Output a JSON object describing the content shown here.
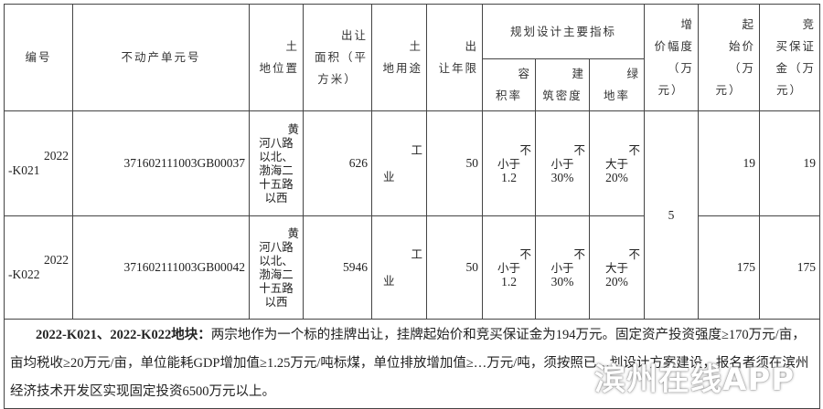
{
  "headers": {
    "id": [
      "编号"
    ],
    "unit": [
      "不动产单元号"
    ],
    "location": [
      "土",
      "地位置"
    ],
    "area": [
      "出让",
      "面积（平",
      "方米）"
    ],
    "use": [
      "土",
      "地用途"
    ],
    "term": [
      "出",
      "让年限"
    ],
    "planning": "规划设计主要指标",
    "far": [
      "容",
      "积率"
    ],
    "density": [
      "建",
      "筑密度"
    ],
    "green": [
      "绿",
      "地率"
    ],
    "increment": [
      "增",
      "价幅度",
      "（万",
      "元）"
    ],
    "start": [
      "起",
      "始价",
      "（万",
      "元）"
    ],
    "deposit": [
      "竞",
      "买保证",
      "金（万",
      "元）"
    ]
  },
  "rows": [
    {
      "id": [
        "2022",
        "-K021"
      ],
      "unit": "371602111003GB00037",
      "location": [
        "黄",
        "河八路",
        "以北、",
        "渤海二",
        "十五路",
        "以西"
      ],
      "area": "626",
      "use": [
        "工",
        "业"
      ],
      "term": "50",
      "far": [
        "不",
        "小于",
        "1.2"
      ],
      "density": [
        "不",
        "小于",
        "30%"
      ],
      "green": [
        "不",
        "大于",
        "20%"
      ],
      "start": "19",
      "deposit": "19"
    },
    {
      "id": [
        "2022",
        "-K022"
      ],
      "unit": "371602111003GB00042",
      "location": [
        "黄",
        "河八路",
        "以北、",
        "渤海二",
        "十五路",
        "以西"
      ],
      "area": "5946",
      "use": [
        "工",
        "业"
      ],
      "term": "50",
      "far": [
        "不",
        "小于",
        "1.2"
      ],
      "density": [
        "不",
        "小于",
        "30%"
      ],
      "green": [
        "不",
        "大于",
        "20%"
      ],
      "start": "175",
      "deposit": "175"
    }
  ],
  "increment_value": "5",
  "note": {
    "lead": "2022-K021、2022-K022地块：",
    "text": "两宗地作为一个标的挂牌出让，挂牌起始价和竞买保证金为194万元。固定资产投资强度≥170万元/亩，亩均税收≥20万元/亩，单位能耗GDP增加值≥1.25万元/吨标煤，单位排放增加值≥…万元/吨，须按照已…划设计方案建设，报名者须在滨州经济技术开发区实现固定投资6500万元以上。"
  },
  "watermark": "滨州在线APP"
}
